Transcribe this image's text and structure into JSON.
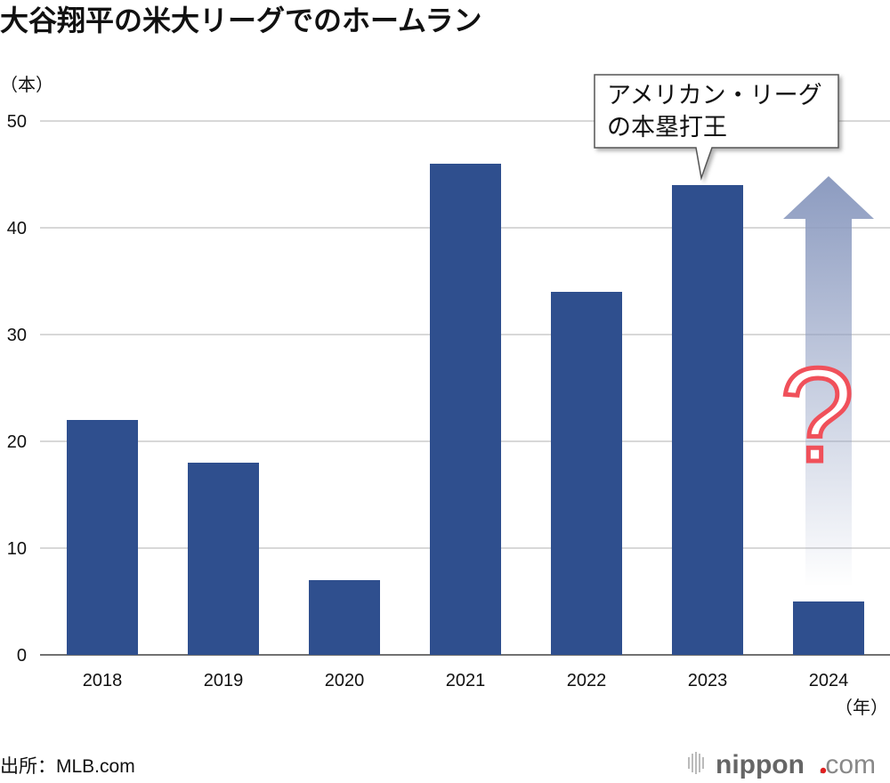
{
  "chart_data": {
    "type": "bar",
    "title": "大谷翔平の米大リーグでのホームラン",
    "ylabel": "（本）",
    "xlabel": "（年）",
    "categories": [
      "2018",
      "2019",
      "2020",
      "2021",
      "2022",
      "2023",
      "2024"
    ],
    "values": [
      22,
      18,
      7,
      46,
      34,
      44,
      5
    ],
    "ylim": [
      0,
      50
    ],
    "yticks": [
      0,
      10,
      20,
      30,
      40,
      50
    ],
    "grid": true,
    "bar_color": "#2f4f8e",
    "annotation": {
      "lines": [
        "アメリカン・リーグ",
        "の本塁打王"
      ],
      "category": "2023"
    },
    "projection": {
      "category": "2024",
      "symbol": "?",
      "arrow_color": "#8c9bc0",
      "symbol_color": "#f0505a"
    }
  },
  "source": "出所：MLB.com",
  "logo": {
    "text": "nippon",
    "suffix": ".com",
    "dot_color": "#e02020"
  }
}
